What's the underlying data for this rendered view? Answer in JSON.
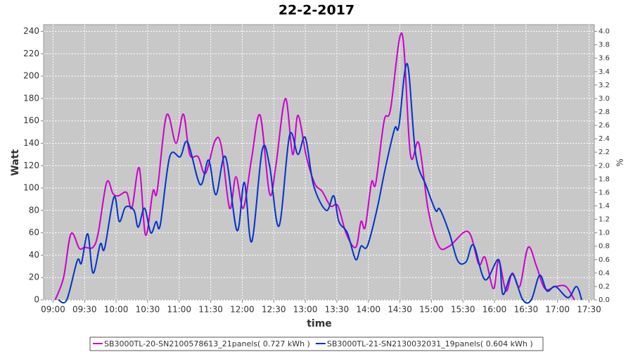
{
  "chart_data": {
    "type": "line",
    "title": "22-2-2017",
    "x_label": "time",
    "y_label": "Watt",
    "y2_label": "%",
    "xlim": [
      "08:51",
      "17:35"
    ],
    "xticks": [
      "09:00",
      "09:30",
      "10:00",
      "10:30",
      "11:00",
      "11:30",
      "12:00",
      "12:30",
      "13:00",
      "13:30",
      "14:00",
      "14:30",
      "15:00",
      "15:30",
      "16:00",
      "16:30",
      "17:00",
      "17:30"
    ],
    "ylim": [
      0,
      246
    ],
    "yticks": [
      0,
      20,
      40,
      60,
      80,
      100,
      120,
      140,
      160,
      180,
      200,
      220,
      240
    ],
    "y2lim": [
      0,
      4.1
    ],
    "y2ticks": [
      {
        "value": 0,
        "label": "0.0"
      },
      0.2,
      0.4,
      0.6,
      0.8,
      {
        "value": 1,
        "label": "1.0"
      },
      1.2,
      1.4,
      1.6,
      1.8,
      {
        "value": 2,
        "label": "2.0"
      },
      2.2,
      2.4,
      2.6,
      2.8,
      {
        "value": 3,
        "label": "3.0"
      },
      3.2,
      3.4,
      3.6,
      3.8,
      {
        "value": 4,
        "label": "4.0"
      }
    ],
    "grid": true,
    "legend": "bottom",
    "series": [
      {
        "name": "SB3000TL-20-SN2100578613_21panels( 0.727 kWh )",
        "color": "#cc00cc",
        "x": [
          "09:02",
          "09:10",
          "09:17",
          "09:25",
          "09:30",
          "09:38",
          "09:43",
          "09:51",
          "09:57",
          "10:02",
          "10:10",
          "10:15",
          "10:22",
          "10:28",
          "10:35",
          "10:39",
          "10:48",
          "10:57",
          "11:04",
          "11:10",
          "11:18",
          "11:25",
          "11:34",
          "11:40",
          "11:48",
          "11:54",
          "12:01",
          "12:09",
          "12:17",
          "12:26",
          "12:32",
          "12:41",
          "12:48",
          "12:53",
          "13:01",
          "13:09",
          "13:16",
          "13:24",
          "13:31",
          "13:39",
          "13:48",
          "13:53",
          "13:57",
          "14:03",
          "14:07",
          "14:15",
          "14:21",
          "14:32",
          "14:40",
          "14:48",
          "14:57",
          "15:07",
          "15:17",
          "15:35",
          "15:45",
          "15:51",
          "15:59",
          "16:04",
          "16:11",
          "16:17",
          "16:24",
          "16:32",
          "16:40",
          "16:48",
          "16:58",
          "17:08",
          "17:16"
        ],
        "values": [
          0,
          20,
          59,
          46,
          47,
          47,
          60,
          105,
          95,
          93,
          96,
          82,
          118,
          58,
          97,
          97,
          165,
          140,
          166,
          130,
          128,
          113,
          142,
          138,
          82,
          110,
          82,
          127,
          165,
          95,
          120,
          180,
          130,
          165,
          128,
          104,
          97,
          84,
          84,
          59,
          47,
          70,
          65,
          105,
          104,
          160,
          170,
          238,
          130,
          140,
          80,
          48,
          48,
          61,
          32,
          38,
          10,
          35,
          8,
          24,
          12,
          47,
          30,
          10,
          12,
          12,
          0
        ]
      },
      {
        "name": "SB3000TL-21-SN2130032031_19panels( 0.604 kWh )",
        "color": "#0033cc",
        "x": [
          "09:05",
          "09:13",
          "09:23",
          "09:27",
          "09:33",
          "09:38",
          "09:45",
          "09:49",
          "09:58",
          "10:03",
          "10:09",
          "10:17",
          "10:21",
          "10:27",
          "10:33",
          "10:38",
          "10:42",
          "10:51",
          "11:01",
          "11:08",
          "11:20",
          "11:28",
          "11:35",
          "11:44",
          "11:55",
          "12:02",
          "12:09",
          "12:19",
          "12:26",
          "12:35",
          "12:45",
          "12:53",
          "13:00",
          "13:08",
          "13:20",
          "13:27",
          "13:32",
          "13:40",
          "13:48",
          "13:53",
          "13:59",
          "14:08",
          "14:16",
          "14:25",
          "14:29",
          "14:37",
          "14:45",
          "14:55",
          "15:04",
          "15:08",
          "15:17",
          "15:25",
          "15:33",
          "15:40",
          "15:51",
          "16:04",
          "16:08",
          "16:17",
          "16:27",
          "16:35",
          "16:43",
          "16:50",
          "16:58",
          "17:10",
          "17:18",
          "17:23"
        ],
        "values": [
          0,
          0,
          35,
          33,
          59,
          24,
          50,
          46,
          92,
          70,
          83,
          80,
          65,
          82,
          60,
          70,
          67,
          128,
          128,
          141,
          103,
          125,
          94,
          128,
          62,
          105,
          52,
          134,
          120,
          66,
          147,
          130,
          145,
          102,
          80,
          93,
          70,
          60,
          36,
          48,
          48,
          80,
          117,
          153,
          155,
          211,
          130,
          102,
          80,
          81,
          60,
          35,
          34,
          49,
          18,
          36,
          5,
          23,
          0,
          0,
          22,
          8,
          12,
          2,
          12,
          0
        ]
      }
    ]
  }
}
